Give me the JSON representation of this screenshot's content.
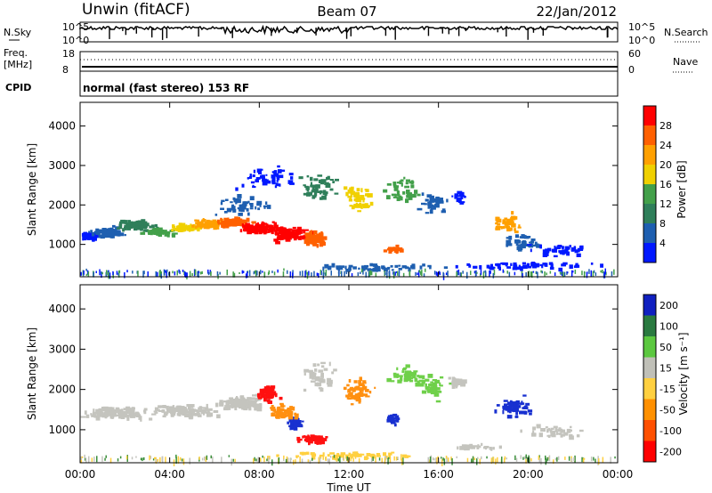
{
  "header": {
    "station": "Unwin (fitACF)",
    "beam": "Beam 07",
    "date": "22/Jan/2012"
  },
  "status_panels": {
    "nsky": {
      "label": "N.Sky",
      "right_label": "N.Search",
      "tick_top": "10^5",
      "tick_bottom": "10^0",
      "rtick_top": "10^5",
      "rtick_bottom": "10^0"
    },
    "freq": {
      "label_line1": "Freq.",
      "label_line2": "[MHz]",
      "ticks": [
        "18",
        "8"
      ],
      "right_ticks": [
        "60",
        "0"
      ],
      "right_label": "Nave"
    },
    "cpid": {
      "label": "CPID",
      "text": "normal (fast stereo) 153 RF"
    }
  },
  "colors": {
    "power": [
      "#0018ff",
      "#1e5fb0",
      "#2f7f5a",
      "#43a04a",
      "#f0d000",
      "#ffa000",
      "#ff6000",
      "#ff0000"
    ],
    "velocity_pos": [
      "#1020c0",
      "#2a7a40",
      "#5cc840",
      "#c0c0b8"
    ],
    "velocity_neg": [
      "#ffd040",
      "#ff9000",
      "#ff5000",
      "#ff0000"
    ]
  },
  "chart_data": [
    {
      "type": "heatmap",
      "name": "Power",
      "ylabel": "Slant Range [km]",
      "ylim": [
        180,
        4600
      ],
      "yticks": [
        "1000",
        "2000",
        "3000",
        "4000"
      ],
      "ytick_values": [
        1000,
        2000,
        3000,
        4000
      ],
      "colorbar": {
        "label": "Power [dB]",
        "tick_labels": [
          "4",
          "8",
          "12",
          "16",
          "20",
          "24",
          "28"
        ],
        "range": [
          0,
          32
        ]
      },
      "blobs": [
        {
          "t": 0.3,
          "r": 1250,
          "c": 0,
          "n": 40,
          "dt": 0.6,
          "dr": 120
        },
        {
          "t": 1.2,
          "r": 1350,
          "c": 1,
          "n": 60,
          "dt": 1.0,
          "dr": 160
        },
        {
          "t": 2.6,
          "r": 1500,
          "c": 2,
          "n": 70,
          "dt": 1.2,
          "dr": 180
        },
        {
          "t": 3.4,
          "r": 1350,
          "c": 3,
          "n": 60,
          "dt": 1.0,
          "dr": 120
        },
        {
          "t": 4.6,
          "r": 1450,
          "c": 4,
          "n": 60,
          "dt": 1.0,
          "dr": 130
        },
        {
          "t": 5.6,
          "r": 1550,
          "c": 5,
          "n": 70,
          "dt": 1.0,
          "dr": 140
        },
        {
          "t": 6.8,
          "r": 1600,
          "c": 6,
          "n": 80,
          "dt": 1.0,
          "dr": 160
        },
        {
          "t": 8.0,
          "r": 1450,
          "c": 7,
          "n": 90,
          "dt": 1.2,
          "dr": 220
        },
        {
          "t": 9.3,
          "r": 1300,
          "c": 7,
          "n": 90,
          "dt": 1.2,
          "dr": 260
        },
        {
          "t": 10.4,
          "r": 1200,
          "c": 6,
          "n": 60,
          "dt": 0.8,
          "dr": 250
        },
        {
          "t": 7.2,
          "r": 2000,
          "c": 1,
          "n": 50,
          "dt": 1.6,
          "dr": 300
        },
        {
          "t": 8.5,
          "r": 2700,
          "c": 0,
          "n": 50,
          "dt": 1.8,
          "dr": 400
        },
        {
          "t": 10.6,
          "r": 2500,
          "c": 2,
          "n": 50,
          "dt": 1.2,
          "dr": 500
        },
        {
          "t": 12.4,
          "r": 2200,
          "c": 4,
          "n": 50,
          "dt": 0.9,
          "dr": 450
        },
        {
          "t": 13.9,
          "r": 900,
          "c": 6,
          "n": 20,
          "dt": 0.5,
          "dr": 100
        },
        {
          "t": 14.3,
          "r": 2400,
          "c": 3,
          "n": 40,
          "dt": 1.0,
          "dr": 450
        },
        {
          "t": 15.6,
          "r": 2100,
          "c": 1,
          "n": 35,
          "dt": 0.9,
          "dr": 400
        },
        {
          "t": 16.9,
          "r": 2200,
          "c": 0,
          "n": 20,
          "dt": 0.4,
          "dr": 200
        },
        {
          "t": 19.0,
          "r": 1600,
          "c": 5,
          "n": 40,
          "dt": 0.8,
          "dr": 300
        },
        {
          "t": 19.6,
          "r": 1100,
          "c": 1,
          "n": 40,
          "dt": 1.4,
          "dr": 300
        },
        {
          "t": 21.5,
          "r": 900,
          "c": 0,
          "n": 40,
          "dt": 1.8,
          "dr": 200
        },
        {
          "t": 13.0,
          "r": 450,
          "c": 1,
          "n": 60,
          "dt": 4.0,
          "dr": 120
        },
        {
          "t": 20.0,
          "r": 500,
          "c": 0,
          "n": 60,
          "dt": 4.0,
          "dr": 120
        }
      ],
      "ground_speckle": {
        "r": 320,
        "c": [
          0,
          1,
          3
        ],
        "n": 260
      }
    },
    {
      "type": "heatmap",
      "name": "Velocity",
      "ylabel": "Slant Range [km]",
      "ylim": [
        180,
        4600
      ],
      "yticks": [
        "1000",
        "2000",
        "3000",
        "4000"
      ],
      "ytick_values": [
        1000,
        2000,
        3000,
        4000
      ],
      "colorbar": {
        "label": "Velocity [m s⁻¹]",
        "tick_labels": [
          "200",
          "100",
          "50",
          "15",
          "-15",
          "-50",
          "-100",
          "-200"
        ],
        "range": [
          -250,
          250
        ]
      },
      "blobs": [
        {
          "t": 1.5,
          "r": 1450,
          "c": "gray",
          "n": 120,
          "dt": 1.8,
          "dr": 200
        },
        {
          "t": 4.5,
          "r": 1500,
          "c": "gray",
          "n": 140,
          "dt": 1.8,
          "dr": 200
        },
        {
          "t": 7.2,
          "r": 1700,
          "c": "gray",
          "n": 120,
          "dt": 1.4,
          "dr": 250
        },
        {
          "t": 8.3,
          "r": 1950,
          "c": "red",
          "n": 60,
          "dt": 0.6,
          "dr": 250
        },
        {
          "t": 9.5,
          "r": 1200,
          "c": "blue",
          "n": 50,
          "dt": 0.4,
          "dr": 200
        },
        {
          "t": 9.0,
          "r": 1500,
          "c": "orange",
          "n": 60,
          "dt": 0.8,
          "dr": 300
        },
        {
          "t": 10.4,
          "r": 800,
          "c": "red",
          "n": 40,
          "dt": 1.0,
          "dr": 150
        },
        {
          "t": 10.6,
          "r": 2400,
          "c": "gray",
          "n": 40,
          "dt": 1.0,
          "dr": 500
        },
        {
          "t": 12.4,
          "r": 2000,
          "c": "orange",
          "n": 50,
          "dt": 0.8,
          "dr": 400
        },
        {
          "t": 13.9,
          "r": 1300,
          "c": "blue",
          "n": 25,
          "dt": 0.4,
          "dr": 200
        },
        {
          "t": 14.5,
          "r": 2400,
          "c": "lgreen",
          "n": 40,
          "dt": 1.0,
          "dr": 400
        },
        {
          "t": 15.6,
          "r": 2100,
          "c": "lgreen",
          "n": 40,
          "dt": 1.0,
          "dr": 400
        },
        {
          "t": 16.8,
          "r": 2200,
          "c": "gray",
          "n": 30,
          "dt": 0.5,
          "dr": 150
        },
        {
          "t": 19.3,
          "r": 1600,
          "c": "blue",
          "n": 60,
          "dt": 0.9,
          "dr": 300
        },
        {
          "t": 21.0,
          "r": 1000,
          "c": "gray",
          "n": 40,
          "dt": 1.8,
          "dr": 200
        },
        {
          "t": 17.5,
          "r": 600,
          "c": "gray",
          "n": 30,
          "dt": 1.5,
          "dr": 80
        },
        {
          "t": 11.5,
          "r": 400,
          "c": "yellow",
          "n": 60,
          "dt": 4.0,
          "dr": 100
        }
      ],
      "ground_speckle": {
        "r": 320,
        "c": [
          "gray",
          "green",
          "yellow"
        ],
        "n": 220
      }
    }
  ],
  "xaxis": {
    "label": "Time UT",
    "tick_labels": [
      "00:00",
      "04:00",
      "08:00",
      "12:00",
      "16:00",
      "20:00",
      "00:00"
    ],
    "tick_values": [
      0,
      4,
      8,
      12,
      16,
      20,
      24
    ],
    "range": [
      0,
      24
    ]
  }
}
